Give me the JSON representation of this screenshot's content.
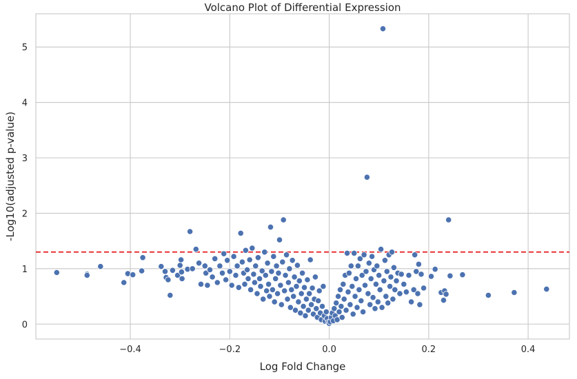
{
  "chart_data": {
    "type": "scatter",
    "title": "Volcano Plot of Differential Expression",
    "xlabel": "Log Fold Change",
    "ylabel": "-Log10(adjusted p-value)",
    "xlim": [
      -0.59,
      0.483
    ],
    "ylim": [
      -0.27,
      5.6
    ],
    "xticks": [
      -0.4,
      -0.2,
      0.0,
      0.2,
      0.4
    ],
    "xtick_labels": [
      "−0.4",
      "−0.2",
      "0.0",
      "0.2",
      "0.4"
    ],
    "yticks": [
      0,
      1,
      2,
      3,
      4,
      5
    ],
    "ytick_labels": [
      "0",
      "1",
      "2",
      "3",
      "4",
      "5"
    ],
    "grid": true,
    "point_color": "#4c72b0",
    "threshold": {
      "y": 1.3,
      "color": "#e41a1c",
      "style": "dashed"
    },
    "points": [
      [
        -0.548,
        0.93
      ],
      [
        -0.487,
        0.9
      ],
      [
        -0.487,
        0.88
      ],
      [
        -0.46,
        1.04
      ],
      [
        -0.413,
        0.75
      ],
      [
        -0.405,
        0.91
      ],
      [
        -0.395,
        0.89
      ],
      [
        -0.377,
        0.96
      ],
      [
        -0.375,
        1.2
      ],
      [
        -0.338,
        1.04
      ],
      [
        -0.33,
        0.95
      ],
      [
        -0.328,
        0.84
      ],
      [
        -0.324,
        0.8
      ],
      [
        -0.32,
        0.52
      ],
      [
        -0.315,
        0.97
      ],
      [
        -0.305,
        0.88
      ],
      [
        -0.3,
        1.06
      ],
      [
        -0.298,
        1.16
      ],
      [
        -0.297,
        0.94
      ],
      [
        -0.296,
        0.82
      ],
      [
        -0.285,
        0.99
      ],
      [
        -0.28,
        1.67
      ],
      [
        -0.275,
        1.0
      ],
      [
        -0.268,
        1.35
      ],
      [
        -0.262,
        1.1
      ],
      [
        -0.258,
        0.72
      ],
      [
        -0.25,
        1.05
      ],
      [
        -0.248,
        0.92
      ],
      [
        -0.245,
        0.7
      ],
      [
        -0.24,
        0.98
      ],
      [
        -0.235,
        0.85
      ],
      [
        -0.23,
        1.18
      ],
      [
        -0.225,
        0.75
      ],
      [
        -0.22,
        1.05
      ],
      [
        -0.215,
        0.92
      ],
      [
        -0.212,
        1.27
      ],
      [
        -0.208,
        0.8
      ],
      [
        -0.205,
        1.15
      ],
      [
        -0.2,
        0.95
      ],
      [
        -0.196,
        0.7
      ],
      [
        -0.192,
        1.22
      ],
      [
        -0.188,
        0.88
      ],
      [
        -0.185,
        1.05
      ],
      [
        -0.182,
        0.66
      ],
      [
        -0.178,
        1.64
      ],
      [
        -0.175,
        1.12
      ],
      [
        -0.172,
        0.92
      ],
      [
        -0.17,
        0.72
      ],
      [
        -0.168,
        1.33
      ],
      [
        -0.165,
        0.98
      ],
      [
        -0.163,
        0.82
      ],
      [
        -0.16,
        1.16
      ],
      [
        -0.158,
        0.62
      ],
      [
        -0.155,
        1.37
      ],
      [
        -0.152,
        0.9
      ],
      [
        -0.15,
        0.75
      ],
      [
        -0.148,
        1.05
      ],
      [
        -0.145,
        0.55
      ],
      [
        -0.143,
        1.2
      ],
      [
        -0.14,
        0.82
      ],
      [
        -0.138,
        0.68
      ],
      [
        -0.135,
        0.96
      ],
      [
        -0.133,
        0.45
      ],
      [
        -0.13,
        1.3
      ],
      [
        -0.128,
        0.88
      ],
      [
        -0.126,
        0.6
      ],
      [
        -0.124,
        1.1
      ],
      [
        -0.122,
        0.72
      ],
      [
        -0.12,
        0.5
      ],
      [
        -0.118,
        1.75
      ],
      [
        -0.116,
        0.95
      ],
      [
        -0.114,
        0.62
      ],
      [
        -0.112,
        1.22
      ],
      [
        -0.11,
        0.4
      ],
      [
        -0.108,
        0.82
      ],
      [
        -0.106,
        1.05
      ],
      [
        -0.104,
        0.55
      ],
      [
        -0.102,
        0.92
      ],
      [
        -0.1,
        1.52
      ],
      [
        -0.098,
        0.7
      ],
      [
        -0.096,
        0.35
      ],
      [
        -0.094,
        1.12
      ],
      [
        -0.092,
        1.88
      ],
      [
        -0.09,
        0.6
      ],
      [
        -0.088,
        0.88
      ],
      [
        -0.086,
        1.25
      ],
      [
        -0.084,
        0.45
      ],
      [
        -0.082,
        0.75
      ],
      [
        -0.08,
        1.0
      ],
      [
        -0.078,
        0.3
      ],
      [
        -0.076,
        0.62
      ],
      [
        -0.074,
        1.15
      ],
      [
        -0.072,
        0.5
      ],
      [
        -0.07,
        0.85
      ],
      [
        -0.068,
        0.25
      ],
      [
        -0.066,
        0.68
      ],
      [
        -0.064,
        1.06
      ],
      [
        -0.062,
        0.4
      ],
      [
        -0.06,
        0.78
      ],
      [
        -0.058,
        0.2
      ],
      [
        -0.056,
        0.55
      ],
      [
        -0.054,
        0.92
      ],
      [
        -0.052,
        0.32
      ],
      [
        -0.05,
        0.66
      ],
      [
        -0.048,
        0.15
      ],
      [
        -0.046,
        0.45
      ],
      [
        -0.044,
        0.8
      ],
      [
        -0.042,
        0.25
      ],
      [
        -0.04,
        0.55
      ],
      [
        -0.038,
        1.16
      ],
      [
        -0.036,
        0.35
      ],
      [
        -0.034,
        0.65
      ],
      [
        -0.032,
        0.18
      ],
      [
        -0.03,
        0.45
      ],
      [
        -0.028,
        0.85
      ],
      [
        -0.026,
        0.28
      ],
      [
        -0.024,
        0.12
      ],
      [
        -0.022,
        0.42
      ],
      [
        -0.02,
        0.6
      ],
      [
        -0.018,
        0.2
      ],
      [
        -0.016,
        0.08
      ],
      [
        -0.014,
        0.32
      ],
      [
        -0.012,
        0.68
      ],
      [
        -0.01,
        0.15
      ],
      [
        -0.008,
        0.05
      ],
      [
        -0.006,
        0.22
      ],
      [
        -0.004,
        0.1
      ],
      [
        -0.002,
        0.03
      ],
      [
        0.0,
        0.01
      ],
      [
        0.002,
        0.04
      ],
      [
        0.004,
        0.12
      ],
      [
        0.006,
        0.2
      ],
      [
        0.008,
        0.06
      ],
      [
        0.01,
        0.28
      ],
      [
        0.012,
        0.15
      ],
      [
        0.014,
        0.38
      ],
      [
        0.016,
        0.08
      ],
      [
        0.018,
        0.5
      ],
      [
        0.02,
        0.22
      ],
      [
        0.022,
        0.62
      ],
      [
        0.024,
        0.32
      ],
      [
        0.026,
        0.12
      ],
      [
        0.028,
        0.72
      ],
      [
        0.03,
        0.45
      ],
      [
        0.032,
        0.88
      ],
      [
        0.034,
        0.25
      ],
      [
        0.036,
        1.28
      ],
      [
        0.038,
        0.58
      ],
      [
        0.04,
        0.92
      ],
      [
        0.042,
        0.35
      ],
      [
        0.044,
        1.05
      ],
      [
        0.046,
        0.68
      ],
      [
        0.048,
        0.18
      ],
      [
        0.05,
        1.28
      ],
      [
        0.052,
        0.5
      ],
      [
        0.054,
        0.82
      ],
      [
        0.056,
        0.3
      ],
      [
        0.058,
        1.05
      ],
      [
        0.06,
        0.62
      ],
      [
        0.062,
        1.18
      ],
      [
        0.064,
        0.42
      ],
      [
        0.066,
        0.88
      ],
      [
        0.068,
        0.22
      ],
      [
        0.07,
        1.25
      ],
      [
        0.072,
        0.7
      ],
      [
        0.074,
        0.95
      ],
      [
        0.076,
        2.65
      ],
      [
        0.078,
        0.55
      ],
      [
        0.08,
        1.1
      ],
      [
        0.082,
        0.35
      ],
      [
        0.084,
        0.82
      ],
      [
        0.086,
        1.22
      ],
      [
        0.088,
        0.48
      ],
      [
        0.09,
        0.98
      ],
      [
        0.092,
        0.28
      ],
      [
        0.094,
        0.72
      ],
      [
        0.096,
        1.05
      ],
      [
        0.098,
        0.4
      ],
      [
        0.1,
        0.88
      ],
      [
        0.102,
        0.62
      ],
      [
        0.104,
        1.35
      ],
      [
        0.106,
        0.3
      ],
      [
        0.108,
        5.33
      ],
      [
        0.11,
        0.78
      ],
      [
        0.112,
        1.15
      ],
      [
        0.114,
        0.5
      ],
      [
        0.116,
        0.95
      ],
      [
        0.118,
        0.38
      ],
      [
        0.12,
        1.25
      ],
      [
        0.122,
        0.68
      ],
      [
        0.124,
        0.85
      ],
      [
        0.126,
        1.3
      ],
      [
        0.128,
        0.45
      ],
      [
        0.13,
        1.02
      ],
      [
        0.132,
        0.62
      ],
      [
        0.135,
        0.78
      ],
      [
        0.138,
        0.92
      ],
      [
        0.142,
        0.55
      ],
      [
        0.145,
        0.9
      ],
      [
        0.15,
        0.72
      ],
      [
        0.155,
        0.58
      ],
      [
        0.16,
        0.88
      ],
      [
        0.165,
        0.4
      ],
      [
        0.17,
        0.62
      ],
      [
        0.172,
        1.25
      ],
      [
        0.175,
        0.95
      ],
      [
        0.178,
        0.55
      ],
      [
        0.18,
        1.08
      ],
      [
        0.182,
        0.35
      ],
      [
        0.185,
        0.9
      ],
      [
        0.19,
        0.65
      ],
      [
        0.205,
        0.86
      ],
      [
        0.213,
        0.99
      ],
      [
        0.225,
        0.57
      ],
      [
        0.23,
        0.43
      ],
      [
        0.232,
        0.6
      ],
      [
        0.235,
        0.54
      ],
      [
        0.24,
        1.88
      ],
      [
        0.243,
        0.87
      ],
      [
        0.268,
        0.89
      ],
      [
        0.32,
        0.52
      ],
      [
        0.372,
        0.57
      ],
      [
        0.437,
        0.63
      ]
    ]
  }
}
